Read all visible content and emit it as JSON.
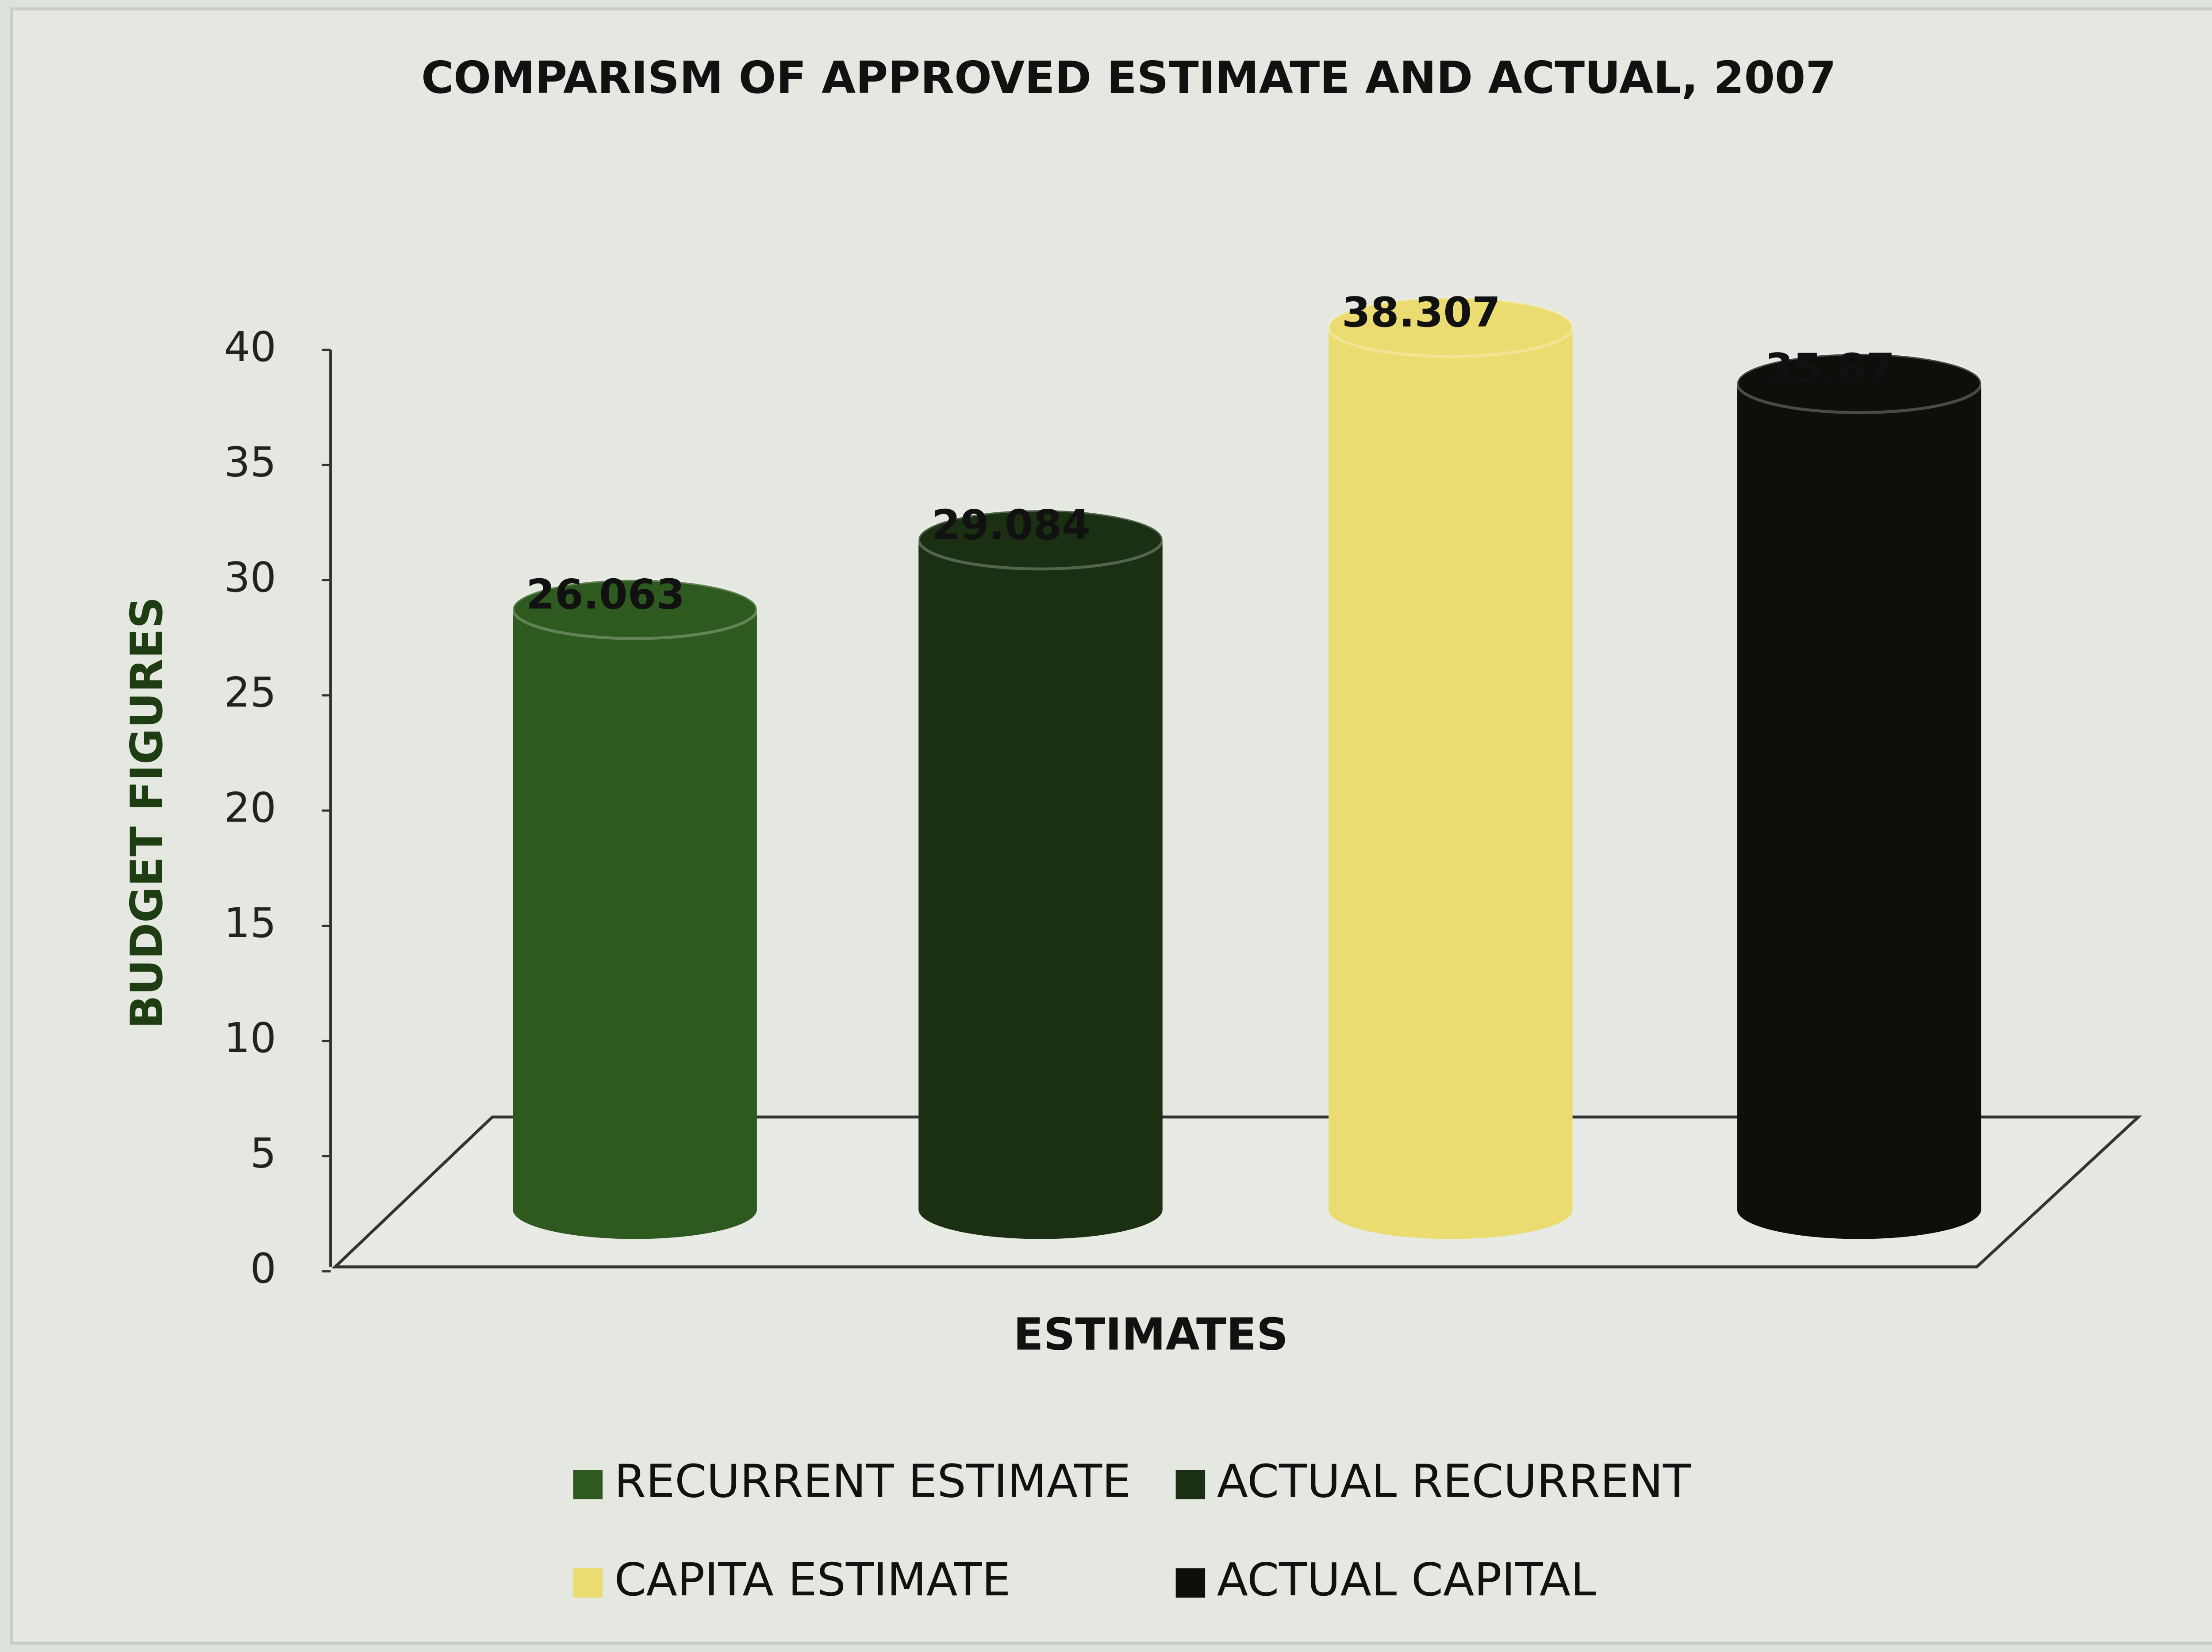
{
  "chart_data": {
    "type": "bar",
    "title": "COMPARISM OF APPROVED ESTIMATE AND ACTUAL, 2007",
    "y_label": "BUDGET FIGURES",
    "x_label": "ESTIMATES",
    "series": [
      {
        "name": "RECURRENT ESTIMATE",
        "color": "#2f5a1f",
        "values": [
          26.063
        ]
      },
      {
        "name": "ACTUAL RECURRENT",
        "color": "#1b3012",
        "values": [
          29.084
        ]
      },
      {
        "name": "CAPITA ESTIMATE",
        "color": "#ebdc72",
        "values": [
          38.307
        ]
      },
      {
        "name": "ACTUAL CAPITAL",
        "color": "#0d0f0b",
        "values": [
          35.87
        ]
      }
    ],
    "ylim": [
      0,
      40
    ],
    "yticks": [
      0,
      5,
      10,
      15,
      20,
      25,
      30,
      35,
      40
    ],
    "legend": "bottom"
  }
}
